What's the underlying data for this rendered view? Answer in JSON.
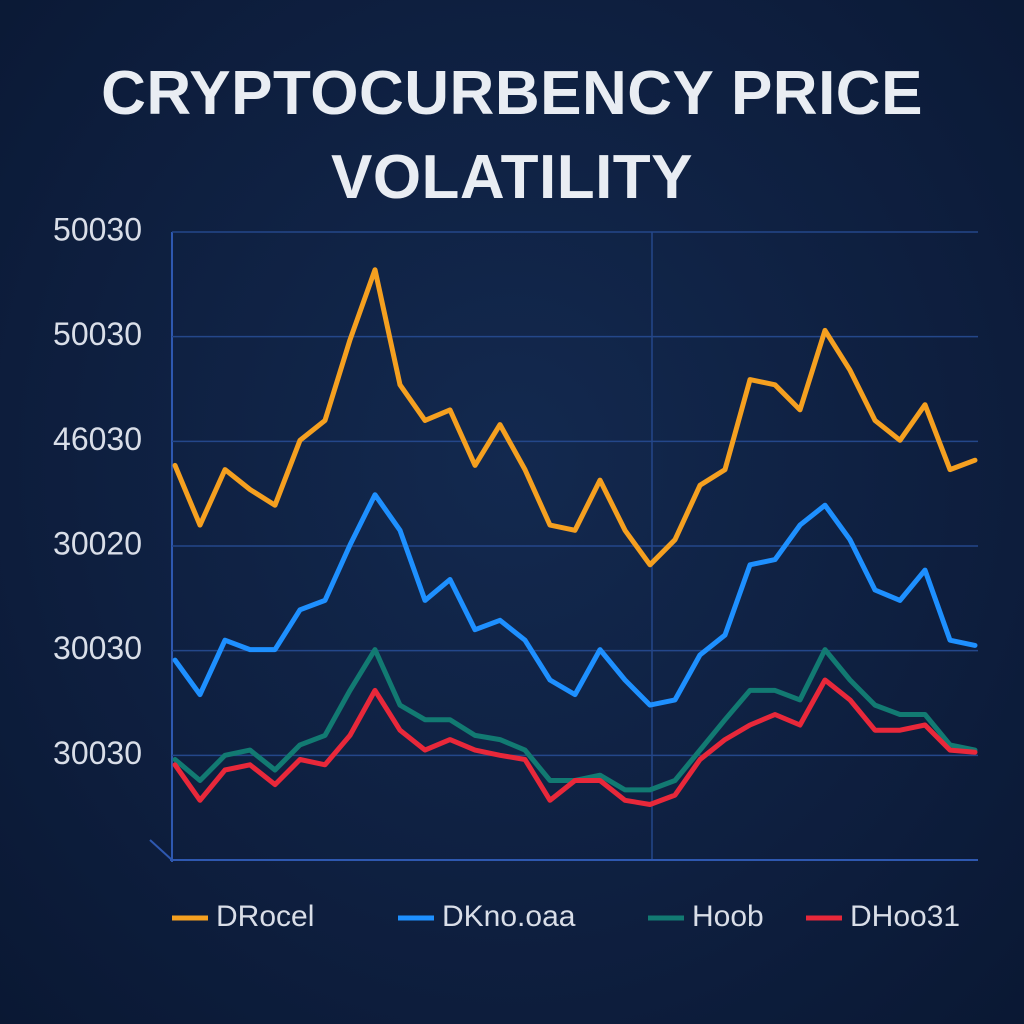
{
  "chart_data": {
    "type": "line",
    "title": "CRYPTOCURBENCY PRICE VOLATILITY",
    "ylim": [
      0,
      6
    ],
    "yticks": [
      {
        "value": 6,
        "label": "50030"
      },
      {
        "value": 5,
        "label": "50030"
      },
      {
        "value": 4,
        "label": "46030"
      },
      {
        "value": 3,
        "label": "30020"
      },
      {
        "value": 2,
        "label": "30030"
      },
      {
        "value": 1,
        "label": "30030"
      }
    ],
    "grid": true,
    "series": [
      {
        "name": "DRocel",
        "color": "#f5a020",
        "values": [
          3.77,
          3.2,
          3.73,
          3.54,
          3.39,
          4.01,
          4.2,
          4.97,
          5.64,
          4.54,
          4.2,
          4.3,
          3.77,
          4.16,
          3.73,
          3.2,
          3.15,
          3.63,
          3.15,
          2.82,
          3.06,
          3.58,
          3.73,
          4.59,
          4.54,
          4.3,
          5.06,
          4.68,
          4.2,
          4.01,
          4.35,
          3.73,
          3.82
        ]
      },
      {
        "name": "DKno.oaa",
        "color": "#1e90ff",
        "values": [
          1.91,
          1.58,
          2.1,
          2.01,
          2.01,
          2.39,
          2.48,
          3.01,
          3.49,
          3.15,
          2.48,
          2.68,
          2.2,
          2.29,
          2.1,
          1.72,
          1.58,
          2.01,
          1.72,
          1.48,
          1.53,
          1.96,
          2.15,
          2.82,
          2.87,
          3.2,
          3.39,
          3.06,
          2.58,
          2.48,
          2.77,
          2.1,
          2.05
        ]
      },
      {
        "name": "Hoob",
        "color": "#127a72",
        "values": [
          0.96,
          0.76,
          1.0,
          1.05,
          0.86,
          1.1,
          1.19,
          1.62,
          2.01,
          1.48,
          1.34,
          1.34,
          1.19,
          1.15,
          1.05,
          0.76,
          0.76,
          0.81,
          0.67,
          0.67,
          0.76,
          1.05,
          1.34,
          1.62,
          1.62,
          1.53,
          2.01,
          1.72,
          1.48,
          1.39,
          1.39,
          1.1,
          1.05
        ]
      },
      {
        "name": "DHoo31",
        "color": "#e8283a",
        "values": [
          0.91,
          0.57,
          0.86,
          0.91,
          0.72,
          0.96,
          0.91,
          1.19,
          1.62,
          1.24,
          1.05,
          1.15,
          1.05,
          1.0,
          0.96,
          0.57,
          0.76,
          0.76,
          0.57,
          0.53,
          0.62,
          0.96,
          1.15,
          1.29,
          1.39,
          1.29,
          1.72,
          1.53,
          1.24,
          1.24,
          1.29,
          1.05,
          1.03
        ]
      }
    ]
  }
}
